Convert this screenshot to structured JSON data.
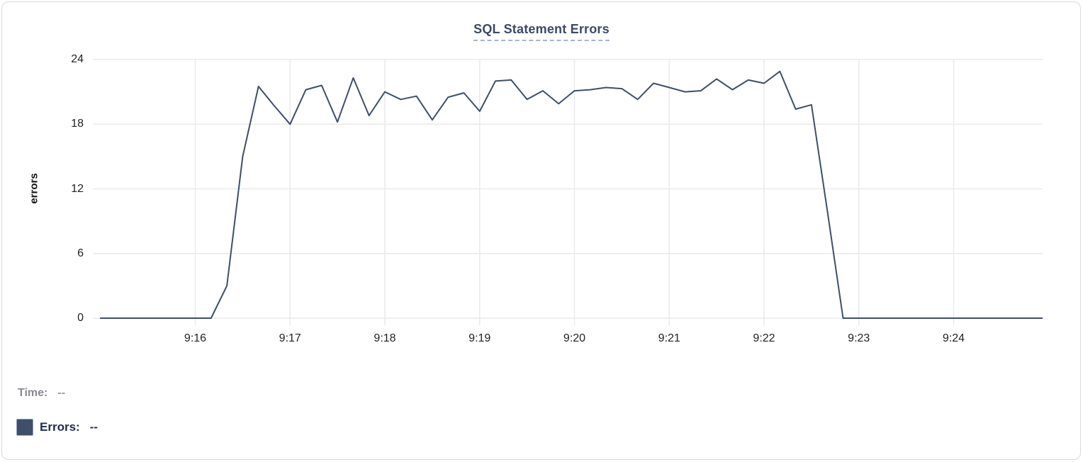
{
  "chart_data": {
    "type": "line",
    "title": "SQL Statement Errors",
    "xlabel": "",
    "ylabel": "errors",
    "x_tick_labels": [
      "9:16",
      "9:17",
      "9:18",
      "9:19",
      "9:20",
      "9:21",
      "9:22",
      "9:23",
      "9:24"
    ],
    "y_ticks": [
      0,
      6,
      12,
      18,
      24
    ],
    "ylim": [
      0,
      24
    ],
    "x_range": [
      "9:15:00",
      "9:24:56"
    ],
    "grid": true,
    "legend_position": "bottom-left",
    "line_color": "#3e4e6c",
    "series": [
      {
        "name": "Errors",
        "points": [
          [
            "9:15:00",
            0
          ],
          [
            "9:15:10",
            0
          ],
          [
            "9:15:20",
            0
          ],
          [
            "9:15:30",
            0
          ],
          [
            "9:15:40",
            0
          ],
          [
            "9:15:50",
            0
          ],
          [
            "9:16:00",
            0
          ],
          [
            "9:16:10",
            0
          ],
          [
            "9:16:20",
            3
          ],
          [
            "9:16:30",
            15
          ],
          [
            "9:16:40",
            21.5
          ],
          [
            "9:16:50",
            19.7
          ],
          [
            "9:17:00",
            18
          ],
          [
            "9:17:10",
            21.2
          ],
          [
            "9:17:20",
            21.6
          ],
          [
            "9:17:30",
            18.2
          ],
          [
            "9:17:40",
            22.3
          ],
          [
            "9:17:50",
            18.8
          ],
          [
            "9:18:00",
            21
          ],
          [
            "9:18:10",
            20.3
          ],
          [
            "9:18:20",
            20.6
          ],
          [
            "9:18:30",
            18.4
          ],
          [
            "9:18:40",
            20.5
          ],
          [
            "9:18:50",
            20.9
          ],
          [
            "9:19:00",
            19.2
          ],
          [
            "9:19:10",
            22
          ],
          [
            "9:19:20",
            22.1
          ],
          [
            "9:19:30",
            20.3
          ],
          [
            "9:19:40",
            21.1
          ],
          [
            "9:19:50",
            19.9
          ],
          [
            "9:20:00",
            21.1
          ],
          [
            "9:20:10",
            21.2
          ],
          [
            "9:20:20",
            21.4
          ],
          [
            "9:20:30",
            21.3
          ],
          [
            "9:20:40",
            20.3
          ],
          [
            "9:20:50",
            21.8
          ],
          [
            "9:21:00",
            21.4
          ],
          [
            "9:21:10",
            21
          ],
          [
            "9:21:20",
            21.1
          ],
          [
            "9:21:30",
            22.2
          ],
          [
            "9:21:40",
            21.2
          ],
          [
            "9:21:50",
            22.1
          ],
          [
            "9:22:00",
            21.8
          ],
          [
            "9:22:10",
            22.9
          ],
          [
            "9:22:20",
            19.4
          ],
          [
            "9:22:30",
            19.8
          ],
          [
            "9:22:40",
            10
          ],
          [
            "9:22:50",
            0
          ],
          [
            "9:23:00",
            0
          ],
          [
            "9:23:10",
            0
          ],
          [
            "9:23:20",
            0
          ],
          [
            "9:23:30",
            0
          ],
          [
            "9:23:40",
            0
          ],
          [
            "9:23:50",
            0
          ],
          [
            "9:24:00",
            0
          ],
          [
            "9:24:10",
            0
          ],
          [
            "9:24:20",
            0
          ],
          [
            "9:24:30",
            0
          ],
          [
            "9:24:40",
            0
          ],
          [
            "9:24:50",
            0
          ],
          [
            "9:24:56",
            0
          ]
        ]
      }
    ]
  },
  "tooltip": {
    "time_label": "Time:",
    "time_value": "--",
    "errors_label": "Errors:",
    "errors_value": "--",
    "swatch_color": "#3e4e6b"
  },
  "colors": {
    "line": "#3e4e6c",
    "grid": "#eaeaea",
    "title": "#3b4a69",
    "title_underline": "#a9b3ca",
    "legend_time_label": "#8a8a91",
    "legend_time_value": "#9a9aa1",
    "legend_errors_text": "#212c53",
    "card_border": "#d8dadd"
  }
}
